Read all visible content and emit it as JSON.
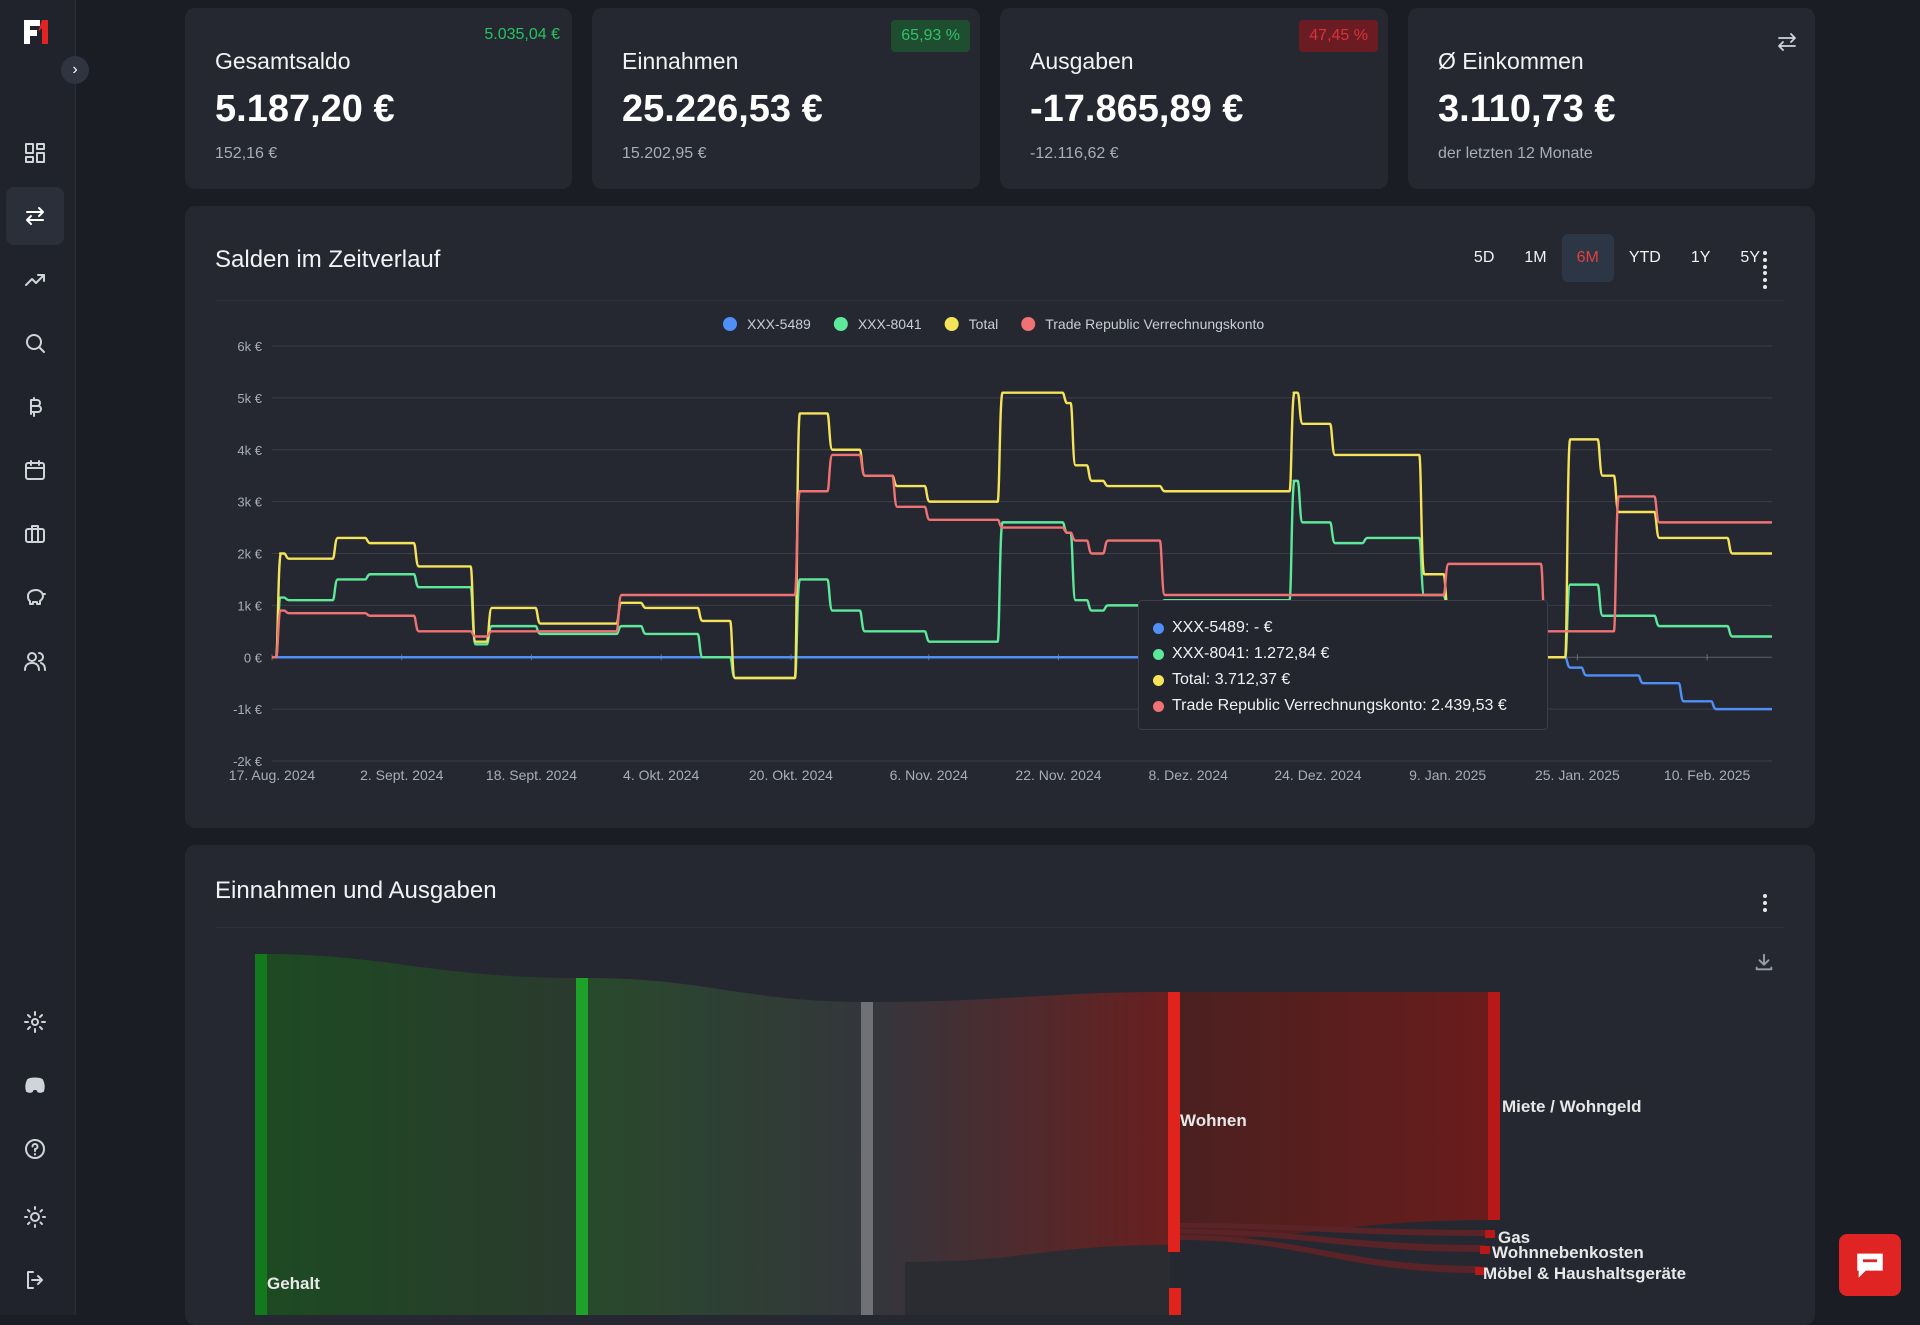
{
  "sidebar": {
    "logo": "F1",
    "items": [
      {
        "icon": "dashboard-icon"
      },
      {
        "icon": "transfer-icon"
      },
      {
        "icon": "trending-up-icon"
      },
      {
        "icon": "search-icon"
      },
      {
        "icon": "bitcoin-icon"
      },
      {
        "icon": "calendar-icon"
      },
      {
        "icon": "briefcase-icon"
      },
      {
        "icon": "piggy-bank-icon"
      },
      {
        "icon": "users-icon"
      },
      {
        "icon": "settings-icon"
      },
      {
        "icon": "discord-icon"
      },
      {
        "icon": "help-icon"
      },
      {
        "icon": "sun-icon"
      },
      {
        "icon": "logout-icon"
      }
    ]
  },
  "kpis": [
    {
      "title": "Gesamtsaldo",
      "value": "5.187,20 €",
      "sub": "152,16 €",
      "badge": "5.035,04 €",
      "badge_style": "plain"
    },
    {
      "title": "Einnahmen",
      "value": "25.226,53 €",
      "sub": "15.202,95 €",
      "badge": "65,93 %",
      "badge_style": "green"
    },
    {
      "title": "Ausgaben",
      "value": "-17.865,89 €",
      "sub": "-12.116,62 €",
      "badge": "47,45 %",
      "badge_style": "red"
    },
    {
      "title": "Ø Einkommen",
      "value": "3.110,73 €",
      "sub": "der letzten 12 Monate",
      "badge": "",
      "badge_style": "none"
    }
  ],
  "balance_chart": {
    "title": "Salden im Zeitverlauf",
    "ranges": [
      "5D",
      "1M",
      "6M",
      "YTD",
      "1Y",
      "5Y"
    ],
    "active_range": "6M",
    "tooltip": {
      "rows": [
        {
          "label": "XXX-5489: - €",
          "color": "#4f8ff7"
        },
        {
          "label": "XXX-8041: 1.272,84 €",
          "color": "#5de89a"
        },
        {
          "label": "Total: 3.712,37 €",
          "color": "#f5e35a"
        },
        {
          "label": "Trade Republic Verrechnungskonto: 2.439,53 €",
          "color": "#f07274"
        }
      ]
    }
  },
  "chart_data": {
    "type": "line",
    "title": "",
    "y_ticks": [
      "6k €",
      "5k €",
      "4k €",
      "3k €",
      "2k €",
      "1k €",
      "0 €",
      "-1k €",
      "-2k €"
    ],
    "ylim": [
      -2000,
      6000
    ],
    "x_ticks": [
      "17. Aug. 2024",
      "2. Sept. 2024",
      "18. Sept. 2024",
      "4. Okt. 2024",
      "20. Okt. 2024",
      "6. Nov. 2024",
      "22. Nov. 2024",
      "8. Dez. 2024",
      "24. Dez. 2024",
      "9. Jan. 2025",
      "25. Jan. 2025",
      "10. Feb. 2025"
    ],
    "x_start": "17. Aug. 2024",
    "x_end": "18. Feb. 2025",
    "grid": true,
    "legend_position": "top",
    "series": [
      {
        "name": "XXX-5489",
        "color": "#4f8ff7",
        "x": [
          "2024-08-17",
          "2025-01-23",
          "2025-01-25",
          "2025-02-01",
          "2025-02-06",
          "2025-02-10",
          "2025-02-18"
        ],
        "values": [
          0,
          0,
          -200,
          -350,
          -500,
          -850,
          -1000
        ]
      },
      {
        "name": "XXX-8041",
        "color": "#5de89a",
        "x": [
          "2024-08-17",
          "2024-08-18",
          "2024-08-24",
          "2024-08-28",
          "2024-09-03",
          "2024-09-10",
          "2024-09-12",
          "2024-09-18",
          "2024-09-28",
          "2024-10-01",
          "2024-10-08",
          "2024-10-12",
          "2024-10-20",
          "2024-10-24",
          "2024-10-28",
          "2024-11-01",
          "2024-11-05",
          "2024-11-14",
          "2024-11-22",
          "2024-11-23",
          "2024-11-25",
          "2024-11-27",
          "2024-12-04",
          "2024-12-20",
          "2024-12-21",
          "2024-12-25",
          "2024-12-29",
          "2025-01-05",
          "2025-01-08",
          "2025-01-20",
          "2025-01-23",
          "2025-01-27",
          "2025-01-29",
          "2025-02-03",
          "2025-02-12",
          "2025-02-18"
        ],
        "values": [
          0,
          1150,
          1100,
          1500,
          1600,
          1350,
          250,
          600,
          450,
          600,
          450,
          0,
          -400,
          1500,
          900,
          500,
          500,
          300,
          2600,
          2400,
          1100,
          900,
          1000,
          1100,
          3400,
          2600,
          2200,
          2300,
          1200,
          900,
          0,
          1400,
          800,
          800,
          600,
          400
        ]
      },
      {
        "name": "Total",
        "color": "#f5e35a",
        "x": [
          "2024-08-17",
          "2024-08-18",
          "2024-08-24",
          "2024-08-28",
          "2024-09-03",
          "2024-09-10",
          "2024-09-12",
          "2024-09-18",
          "2024-09-28",
          "2024-10-01",
          "2024-10-08",
          "2024-10-12",
          "2024-10-20",
          "2024-10-24",
          "2024-10-28",
          "2024-11-01",
          "2024-11-05",
          "2024-11-14",
          "2024-11-22",
          "2024-11-23",
          "2024-11-25",
          "2024-11-27",
          "2024-12-04",
          "2024-12-20",
          "2024-12-21",
          "2024-12-25",
          "2024-12-29",
          "2025-01-05",
          "2025-01-08",
          "2025-01-20",
          "2025-01-23",
          "2025-01-27",
          "2025-01-29",
          "2025-02-03",
          "2025-02-12",
          "2025-02-18"
        ],
        "values": [
          0,
          2000,
          1900,
          2300,
          2200,
          1750,
          300,
          950,
          650,
          1050,
          950,
          700,
          -400,
          4700,
          4000,
          3500,
          3300,
          3000,
          5100,
          4900,
          3700,
          3400,
          3300,
          3200,
          5100,
          4500,
          3900,
          3900,
          1600,
          900,
          0,
          4200,
          3500,
          2800,
          2300,
          2000
        ]
      },
      {
        "name": "Trade Republic Verrechnungskonto",
        "color": "#f07274",
        "x": [
          "2024-08-17",
          "2024-08-18",
          "2024-08-24",
          "2024-08-28",
          "2024-09-03",
          "2024-09-10",
          "2024-09-12",
          "2024-09-18",
          "2024-09-28",
          "2024-10-01",
          "2024-10-08",
          "2024-10-12",
          "2024-10-20",
          "2024-10-24",
          "2024-10-28",
          "2024-11-01",
          "2024-11-05",
          "2024-11-14",
          "2024-11-22",
          "2024-11-23",
          "2024-11-25",
          "2024-11-27",
          "2024-12-04",
          "2024-12-20",
          "2024-12-21",
          "2024-12-25",
          "2024-12-29",
          "2025-01-05",
          "2025-01-08",
          "2025-01-20",
          "2025-01-23",
          "2025-01-27",
          "2025-01-29",
          "2025-02-03",
          "2025-02-12",
          "2025-02-18"
        ],
        "values": [
          0,
          900,
          850,
          850,
          800,
          500,
          400,
          500,
          500,
          1200,
          1200,
          1200,
          1200,
          3200,
          3900,
          3500,
          2900,
          2650,
          2500,
          2400,
          2250,
          2000,
          2250,
          1200,
          1200,
          1200,
          1200,
          1200,
          1200,
          1800,
          500,
          500,
          500,
          3100,
          2600,
          2600
        ]
      }
    ]
  },
  "sankey": {
    "title": "Einnahmen und Ausgaben",
    "labels": {
      "gehalt": "Gehalt",
      "wohnen": "Wohnen",
      "miete": "Miete / Wohngeld",
      "gas": "Gas",
      "nebenkosten": "Wohnnebenkosten",
      "moebel": "Möbel & Haushaltsgeräte"
    }
  },
  "colors": {
    "accent_red": "#e02424",
    "positive": "#22c55e",
    "negative": "#d9323b"
  }
}
